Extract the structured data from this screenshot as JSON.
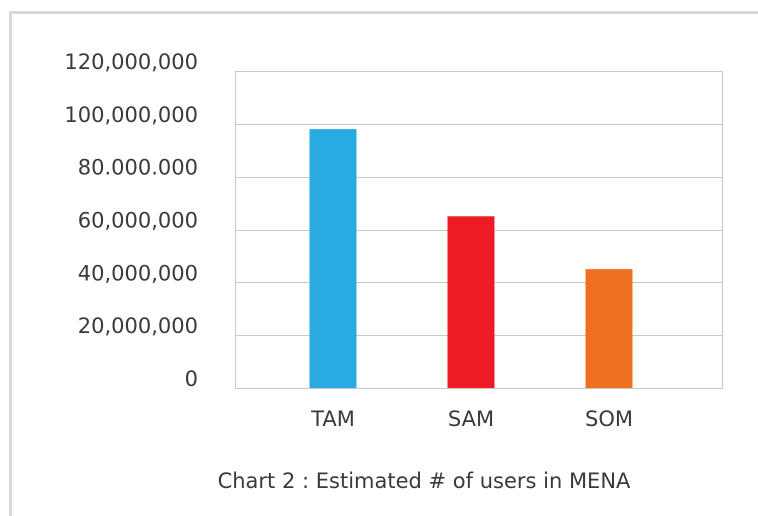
{
  "chart_data": {
    "type": "bar",
    "title": "Chart 2 : Estimated # of users in MENA",
    "categories": [
      "TAM",
      "SAM",
      "SOM"
    ],
    "values": [
      98000000,
      65000000,
      45000000
    ],
    "colors": [
      "#29abe2",
      "#ed1c24",
      "#f07022"
    ],
    "ylim": [
      0,
      120000000
    ],
    "yticks": [
      0,
      {
        "value": 20000000,
        "label": "20,000,000"
      },
      {
        "value": 40000000,
        "label": "40,000,000"
      },
      {
        "value": 60000000,
        "label": "60,000,000"
      },
      {
        "value": 80000000,
        "label": "80.000.000"
      },
      {
        "value": 100000000,
        "label": "100,000,000"
      },
      {
        "value": 120000000,
        "label": "120,000,000"
      }
    ],
    "grid": true
  }
}
